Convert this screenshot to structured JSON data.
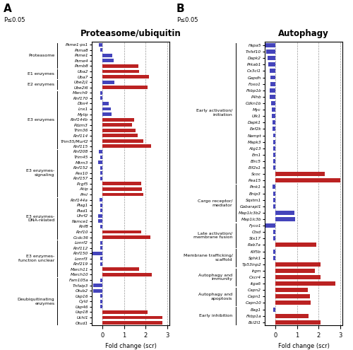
{
  "chart_data": [
    {
      "type": "bar",
      "orientation": "horizontal",
      "title": "Proteasome/ubiquitin",
      "xlabel": "Fold change (scr)",
      "xlim": [
        -0.5,
        3.1
      ],
      "xticks": [
        0,
        1,
        2,
        3
      ],
      "grid": true,
      "annotations": [
        "A",
        "P≤0.05"
      ],
      "groups": [
        {
          "label": "Proteasome",
          "categories": [
            "Psme1-ps1",
            "Psma8",
            "Psme1",
            "Psme4",
            "Psmb8"
          ],
          "values": [
            -0.18,
            -0.12,
            0.45,
            0.5,
            1.65
          ],
          "colors": [
            "#4444bb",
            "#4444bb",
            "#4444bb",
            "#4444bb",
            "#bb2222"
          ]
        },
        {
          "label": "E1 enzymes",
          "categories": [
            "Uba2",
            "Uba7"
          ],
          "values": [
            1.7,
            2.15
          ],
          "colors": [
            "#bb2222",
            "#bb2222"
          ]
        },
        {
          "label": "E2 enzymes",
          "categories": [
            "Ube2j1",
            "Ube2l6"
          ],
          "values": [
            0.55,
            2.1
          ],
          "colors": [
            "#4444bb",
            "#bb2222"
          ]
        },
        {
          "label": "E3 enzymes",
          "categories": [
            "March9",
            "Rnf170",
            "Dbx4",
            "Lnx1",
            "Mylip",
            "Rnf144b",
            "Pdzm3",
            "Trim36",
            "Rnf114",
            "Trim55/Murf2",
            "Rnf115"
          ],
          "values": [
            -0.12,
            -0.1,
            0.3,
            0.38,
            0.42,
            1.45,
            1.38,
            1.52,
            1.62,
            1.88,
            2.25
          ],
          "colors": [
            "#4444bb",
            "#4444bb",
            "#4444bb",
            "#4444bb",
            "#4444bb",
            "#bb2222",
            "#bb2222",
            "#bb2222",
            "#bb2222",
            "#bb2222",
            "#bb2222"
          ]
        },
        {
          "label": "E3 enzymes-\nsignaling",
          "categories": [
            "Rnf208",
            "Trim45",
            "Mkrn3",
            "Rnf152",
            "Pex10",
            "Rnf157",
            "Pcgf5",
            "Akip",
            "Pml"
          ],
          "values": [
            -0.18,
            -0.12,
            -0.22,
            -0.12,
            -0.12,
            -0.1,
            1.78,
            1.82,
            1.88
          ],
          "colors": [
            "#4444bb",
            "#4444bb",
            "#4444bb",
            "#4444bb",
            "#4444bb",
            "#4444bb",
            "#bb2222",
            "#bb2222",
            "#bb2222"
          ]
        },
        {
          "label": "E3 enzymes-\nDNA-related",
          "categories": [
            "Rnf144a",
            "Plag1",
            "Plad1",
            "Uhrf2",
            "Nsmce1",
            "Rnf8",
            "Rnf10",
            "Ccdc36"
          ],
          "values": [
            -0.15,
            -0.12,
            -0.12,
            -0.2,
            -0.2,
            -0.1,
            1.78,
            2.2
          ],
          "colors": [
            "#4444bb",
            "#4444bb",
            "#4444bb",
            "#4444bb",
            "#4444bb",
            "#4444bb",
            "#bb2222",
            "#bb2222"
          ]
        },
        {
          "label": "E3 enzymes-\nfunction unclear",
          "categories": [
            "Lonrf2",
            "Rnf112",
            "Rnf150",
            "Lonrf3",
            "Rnf219",
            "March11",
            "March10"
          ],
          "values": [
            -0.12,
            -0.12,
            -0.48,
            -0.12,
            -0.1,
            1.68,
            2.28
          ],
          "colors": [
            "#4444bb",
            "#4444bb",
            "#4444bb",
            "#4444bb",
            "#4444bb",
            "#bb2222",
            "#bb2222"
          ]
        },
        {
          "label": "Deubiquitinating\nenzymes",
          "categories": [
            "Fam105a",
            "Tnfaip3",
            "Otub2",
            "Usp16",
            "Cyld",
            "Usp46",
            "Usp18",
            "Uchl1",
            "Otud1"
          ],
          "values": [
            -0.1,
            -0.42,
            -0.42,
            -0.12,
            -0.12,
            -0.1,
            2.08,
            2.78,
            2.78
          ],
          "colors": [
            "#4444bb",
            "#4444bb",
            "#4444bb",
            "#4444bb",
            "#4444bb",
            "#4444bb",
            "#bb2222",
            "#bb2222",
            "#bb2222"
          ]
        }
      ]
    },
    {
      "type": "bar",
      "orientation": "horizontal",
      "title": "Autophagy",
      "xlabel": "Fold change (scr)",
      "xlim": [
        -0.5,
        3.1
      ],
      "xticks": [
        0,
        1,
        2,
        3
      ],
      "grid": true,
      "annotations": [
        "B",
        "P≤0.05"
      ],
      "groups": [
        {
          "label": "Early activation/\ninitiation",
          "categories": [
            "Hspa5",
            "Tnfsf10",
            "Dapk2",
            "Prkab1",
            "Cx3cl1",
            "Gapdh",
            "Foxo1",
            "Fkbp1b",
            "P4hb",
            "Cdkn1b",
            "Myc",
            "Ulk1",
            "Dapk1",
            "Eef2k",
            "Nampt",
            "Mapk3",
            "Atg13",
            "Em1",
            "Birc5",
            "Eif2s1",
            "Scoc",
            "Pea15"
          ],
          "values": [
            -0.48,
            -0.42,
            -0.38,
            -0.33,
            -0.28,
            -0.23,
            -0.23,
            -0.28,
            -0.28,
            -0.22,
            -0.18,
            -0.18,
            -0.15,
            -0.15,
            -0.12,
            -0.1,
            -0.1,
            -0.1,
            -0.1,
            -0.1,
            2.28,
            3.0
          ],
          "colors": [
            "#4444bb",
            "#4444bb",
            "#4444bb",
            "#4444bb",
            "#4444bb",
            "#4444bb",
            "#4444bb",
            "#4444bb",
            "#4444bb",
            "#4444bb",
            "#4444bb",
            "#4444bb",
            "#4444bb",
            "#4444bb",
            "#4444bb",
            "#4444bb",
            "#4444bb",
            "#4444bb",
            "#4444bb",
            "#4444bb",
            "#bb2222",
            "#bb2222"
          ]
        },
        {
          "label": "Cargo receptor/\nmediator",
          "categories": [
            "Pink1",
            "Bnip3",
            "Sqstm1",
            "Gabarapl1",
            "Map1lc3b2",
            "Map1lc3b"
          ],
          "values": [
            -0.15,
            -0.12,
            -0.1,
            -0.1,
            0.88,
            0.92
          ],
          "colors": [
            "#4444bb",
            "#4444bb",
            "#4444bb",
            "#4444bb",
            "#4444bb",
            "#4444bb"
          ]
        },
        {
          "label": "Late activation/\nmembrane fusion",
          "categories": [
            "Fyco1",
            "Ctsd",
            "Stx17",
            "Rab7a"
          ],
          "values": [
            -0.48,
            -0.12,
            -0.1,
            1.88
          ],
          "colors": [
            "#4444bb",
            "#4444bb",
            "#4444bb",
            "#bb2222"
          ]
        },
        {
          "label": "Membrane trafficking/\nscaffold",
          "categories": [
            "Kif5b",
            "Sphk1",
            "Tp53inp2"
          ],
          "values": [
            -0.1,
            -0.1,
            2.08
          ],
          "colors": [
            "#4444bb",
            "#4444bb",
            "#bb2222"
          ]
        },
        {
          "label": "Autophagy and\nimmunity",
          "categories": [
            "Irgm",
            "Cxcr4",
            "Itga6"
          ],
          "values": [
            1.82,
            2.08,
            2.78
          ],
          "colors": [
            "#bb2222",
            "#bb2222",
            "#bb2222"
          ]
        },
        {
          "label": "Autophagy and\napoptosis",
          "categories": [
            "Capn2",
            "Capn1",
            "Capn10"
          ],
          "values": [
            1.48,
            1.58,
            1.62
          ],
          "colors": [
            "#bb2222",
            "#bb2222",
            "#bb2222"
          ]
        },
        {
          "label": "Early inhibition",
          "categories": [
            "Bag1",
            "Fkbp1a",
            "Bcl2l1"
          ],
          "values": [
            -0.1,
            1.52,
            2.08
          ],
          "colors": [
            "#4444bb",
            "#bb2222",
            "#bb2222"
          ]
        }
      ]
    }
  ]
}
